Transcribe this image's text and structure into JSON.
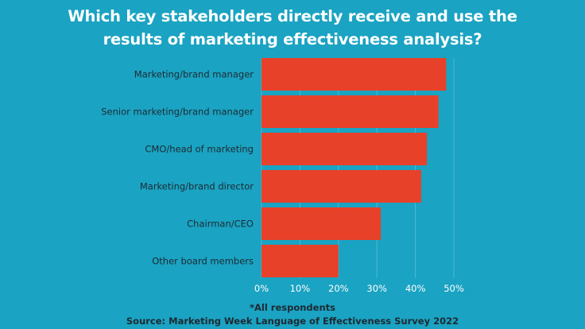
{
  "title_lines": [
    "Which key stakeholders directly receive and use the",
    "results of marketing effectiveness analysis?"
  ],
  "note": "*All respondents",
  "source": "Source: Marketing Week Language of Effectiveness Survey 2022",
  "colors": {
    "background": "#1aa3c2",
    "bar": "#e8412a",
    "grid": "#4cbad3",
    "label": "#1e2a33",
    "tick": "#ffffff"
  },
  "chart_data": {
    "type": "bar",
    "orientation": "horizontal",
    "categories": [
      "Marketing/brand manager",
      "Senior marketing/brand manager",
      "CMO/head of marketing",
      "Marketing/brand director",
      "Chairman/CEO",
      "Other board members"
    ],
    "values": [
      48,
      46,
      43,
      41.5,
      31,
      20
    ],
    "xlim": [
      0,
      50
    ],
    "ticks": [
      "0%",
      "10%",
      "20%",
      "30%",
      "40%",
      "50%"
    ],
    "tick_values": [
      0,
      10,
      20,
      30,
      40,
      50
    ],
    "grid": true
  }
}
